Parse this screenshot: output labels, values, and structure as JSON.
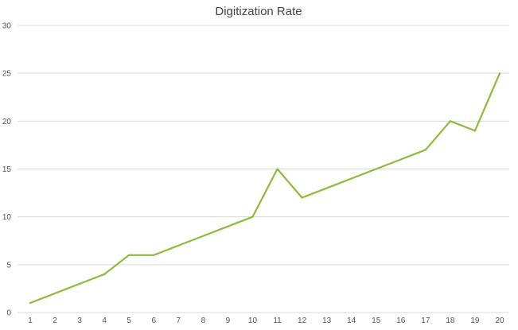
{
  "chart_data": {
    "type": "line",
    "title": "Digitization Rate",
    "xlabel": "",
    "ylabel": "",
    "x": [
      1,
      2,
      3,
      4,
      5,
      6,
      7,
      8,
      9,
      10,
      11,
      12,
      13,
      14,
      15,
      16,
      17,
      18,
      19,
      20
    ],
    "series": [
      {
        "values": [
          1,
          2,
          3,
          4,
          6,
          6,
          7,
          8,
          9,
          10,
          15,
          12,
          13,
          14,
          15,
          16,
          17,
          20,
          19,
          25
        ],
        "color": "#8dbb3a"
      }
    ],
    "ylim": [
      0,
      30
    ],
    "yticks": [
      0,
      5,
      10,
      15,
      20,
      25,
      30
    ],
    "grid": true,
    "legend": "none"
  }
}
